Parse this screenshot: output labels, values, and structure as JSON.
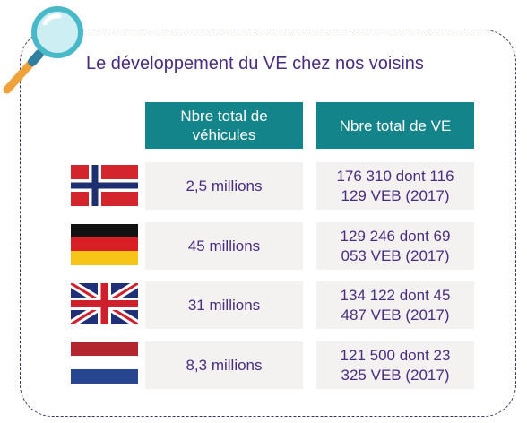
{
  "title": "Le développement du VE chez nos voisins",
  "headers": {
    "col1": "Nbre total de véhicules",
    "col2": "Nbre total de VE"
  },
  "rows": [
    {
      "flag": "norway-flag-icon",
      "vehicles": "2,5 millions",
      "ev": "176 310 dont 116 129 VEB (2017)"
    },
    {
      "flag": "germany-flag-icon",
      "vehicles": "45 millions",
      "ev": "129 246 dont 69 053 VEB (2017)"
    },
    {
      "flag": "united-kingdom-flag-icon",
      "vehicles": "31 millions",
      "ev": "134 122 dont 45 487 VEB (2017)"
    },
    {
      "flag": "netherlands-flag-icon",
      "vehicles": "8,3 millions",
      "ev": "121 500 dont 23 325 VEB (2017)"
    }
  ],
  "colors": {
    "header_bg": "#138489",
    "cell_bg": "#f3f2f1",
    "text": "#4a2d7f",
    "frame": "#3b3669"
  }
}
